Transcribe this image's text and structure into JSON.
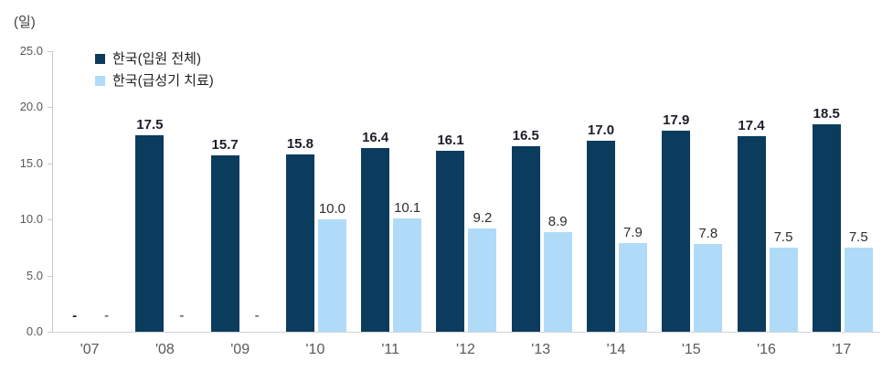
{
  "chart_data": {
    "type": "bar",
    "title": "",
    "y_axis_title": "(일)",
    "categories": [
      "'07",
      "'08",
      "'09",
      "'10",
      "'11",
      "'12",
      "'13",
      "'14",
      "'15",
      "'16",
      "'17"
    ],
    "series": [
      {
        "name": "한국(입원 전체)",
        "color": "#0b3c5e",
        "values": [
          null,
          17.5,
          15.7,
          15.8,
          16.4,
          16.1,
          16.5,
          17.0,
          17.9,
          17.4,
          18.5
        ],
        "labels": [
          "-",
          "17.5",
          "15.7",
          "15.8",
          "16.4",
          "16.1",
          "16.5",
          "17.0",
          "17.9",
          "17.4",
          "18.5"
        ]
      },
      {
        "name": "한국(급성기 치료)",
        "color": "#afdbf8",
        "values": [
          null,
          null,
          null,
          10.0,
          10.1,
          9.2,
          8.9,
          7.9,
          7.8,
          7.5,
          7.5
        ],
        "labels": [
          "-",
          "-",
          "-",
          "10.0",
          "10.1",
          "9.2",
          "8.9",
          "7.9",
          "7.8",
          "7.5",
          "7.5"
        ]
      }
    ],
    "missing_marker": "-",
    "ylim": [
      0,
      25
    ],
    "yticks": [
      0.0,
      5.0,
      10.0,
      15.0,
      20.0,
      25.0
    ],
    "ytick_labels": [
      "0.0",
      "5.0",
      "10.0",
      "15.0",
      "20.0",
      "25.0"
    ],
    "grid": false,
    "legend_position": "top-left",
    "colors": {
      "axis_line": "#c9c9c9",
      "tick_text": "#595959",
      "label_text_dark": "#1d1d29",
      "label_text_light": "#2e2e2e"
    }
  }
}
